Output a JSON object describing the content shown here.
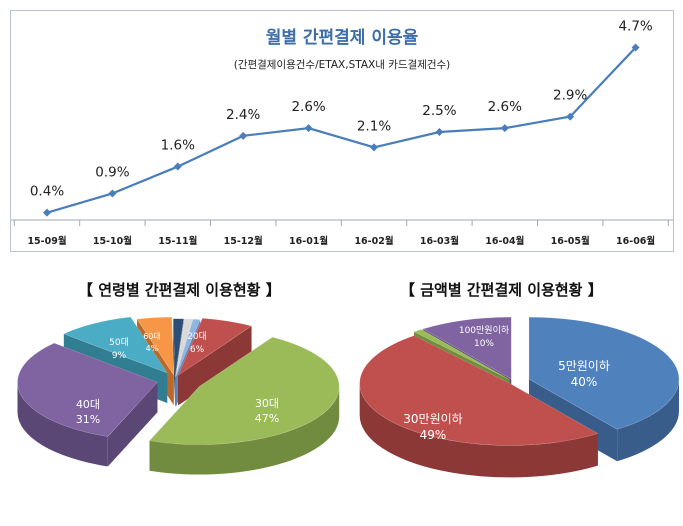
{
  "chart_data": [
    {
      "type": "line",
      "title": "월별 간편결제 이용율",
      "subtitle": "(간편결제이용건수/ETAX,STAX내 카드결제건수)",
      "x": [
        "15-09월",
        "15-10월",
        "15-11월",
        "15-12월",
        "16-01월",
        "16-02월",
        "16-03월",
        "16-04월",
        "16-05월",
        "16-06월"
      ],
      "series": [
        {
          "values": [
            0.4,
            0.9,
            1.6,
            2.4,
            2.6,
            2.1,
            2.5,
            2.6,
            2.9,
            4.7
          ],
          "labels": [
            "0.4%",
            "0.9%",
            "1.6%",
            "2.4%",
            "2.6%",
            "2.1%",
            "2.5%",
            "2.6%",
            "2.9%",
            "4.7%"
          ]
        }
      ],
      "ylim": [
        0,
        5
      ],
      "grid": false,
      "color": "#4a7ebb"
    },
    {
      "type": "pie",
      "title": "【 연령별 간편결제 이용현황 】",
      "slices": [
        {
          "label": "20대",
          "value": 6,
          "text": "6%",
          "color": "#c0504d",
          "dark": "#8c3836",
          "explode": 0.06
        },
        {
          "label": "30대",
          "value": 47,
          "text": "47%",
          "color": "#9bbb59",
          "dark": "#718c3f",
          "explode": 0.18
        },
        {
          "label": "40대",
          "value": 31,
          "text": "31%",
          "color": "#8064a2",
          "dark": "#5b4776",
          "explode": 0.12
        },
        {
          "label": "50대",
          "value": 9,
          "text": "9%",
          "color": "#4bacc6",
          "dark": "#317d92",
          "explode": 0.1
        },
        {
          "label": "60대",
          "value": 4,
          "text": "4%",
          "color": "#f79646",
          "dark": "#b96a2a",
          "explode": 0.06
        },
        {
          "label": "",
          "value": 1.2,
          "text": "",
          "color": "#2c4d75",
          "dark": "#1d3350",
          "explode": 0.04
        },
        {
          "label": "",
          "value": 1.0,
          "text": "",
          "color": "#d9d9d9",
          "dark": "#a6a6a6",
          "explode": 0.04
        },
        {
          "label": "",
          "value": 0.8,
          "text": "",
          "color": "#8eb4e3",
          "dark": "#5f86b6",
          "explode": 0.04
        }
      ]
    },
    {
      "type": "pie",
      "title": "【 금액별 간편결제 이용현황 】",
      "slices": [
        {
          "label": "5만원이하",
          "value": 40,
          "text": "40%",
          "color": "#4f81bd",
          "dark": "#385d8a",
          "explode": 0.12
        },
        {
          "label": "30만원이하",
          "value": 49,
          "text": "49%",
          "color": "#c0504d",
          "dark": "#8c3836",
          "explode": 0.03
        },
        {
          "label": "",
          "value": 1,
          "text": "",
          "color": "#9bbb59",
          "dark": "#718c3f",
          "explode": 0.04
        },
        {
          "label": "100만원이하",
          "value": 10,
          "text": "10%",
          "color": "#8064a2",
          "dark": "#5b4776",
          "explode": 0.04
        }
      ]
    }
  ]
}
